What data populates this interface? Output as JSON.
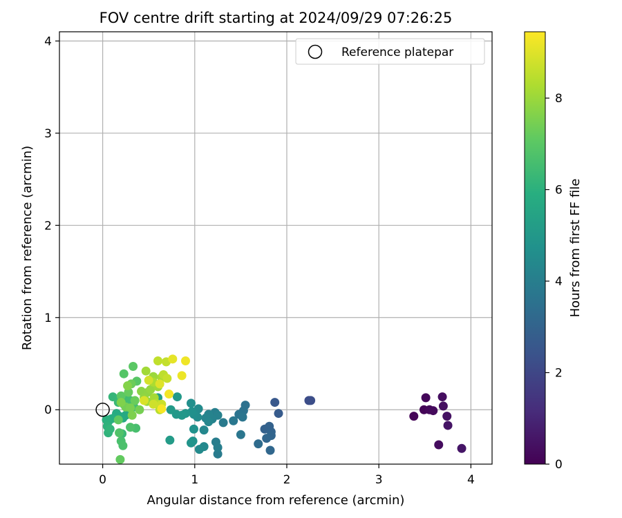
{
  "chart_data": {
    "type": "scatter",
    "title": "FOV centre drift starting at 2024/09/29 07:26:25",
    "xlabel": "Angular distance from reference (arcmin)",
    "ylabel": "Rotation from reference (arcmin)",
    "xlim": [
      -0.47,
      4.23
    ],
    "ylim": [
      -0.59,
      4.1
    ],
    "xticks": [
      0,
      1,
      2,
      3,
      4
    ],
    "yticks": [
      0,
      1,
      2,
      3,
      4
    ],
    "grid": true,
    "legend": {
      "location": "upper right",
      "entries": [
        "Reference platepar"
      ]
    },
    "reference_point": {
      "x": 0.0,
      "y": 0.0
    },
    "colorbar": {
      "label": "Hours from first FF file",
      "colormap": "viridis",
      "range": [
        0,
        9.45
      ],
      "ticks": [
        0,
        2,
        4,
        6,
        8
      ]
    },
    "series": [
      {
        "points": [
          {
            "x": 3.38,
            "y": -0.07,
            "c": 0.1
          },
          {
            "x": 3.49,
            "y": 0.0,
            "c": 0.1
          },
          {
            "x": 3.51,
            "y": 0.13,
            "c": 0.15
          },
          {
            "x": 3.55,
            "y": 0.0,
            "c": 0.2
          },
          {
            "x": 3.59,
            "y": -0.01,
            "c": 0.25
          },
          {
            "x": 3.65,
            "y": -0.38,
            "c": 0.3
          },
          {
            "x": 3.69,
            "y": 0.14,
            "c": 0.35
          },
          {
            "x": 3.7,
            "y": 0.04,
            "c": 0.4
          },
          {
            "x": 3.74,
            "y": -0.07,
            "c": 0.45
          },
          {
            "x": 3.75,
            "y": -0.17,
            "c": 0.5
          },
          {
            "x": 3.9,
            "y": -0.42,
            "c": 0.55
          },
          {
            "x": 2.24,
            "y": 0.1,
            "c": 2.2
          },
          {
            "x": 2.26,
            "y": 0.1,
            "c": 2.25
          },
          {
            "x": 1.87,
            "y": 0.08,
            "c": 2.6
          },
          {
            "x": 1.91,
            "y": -0.04,
            "c": 2.7
          },
          {
            "x": 1.76,
            "y": -0.21,
            "c": 2.9
          },
          {
            "x": 1.81,
            "y": -0.18,
            "c": 2.95
          },
          {
            "x": 1.83,
            "y": -0.24,
            "c": 3.0
          },
          {
            "x": 1.83,
            "y": -0.28,
            "c": 3.05
          },
          {
            "x": 1.78,
            "y": -0.31,
            "c": 3.1
          },
          {
            "x": 1.82,
            "y": -0.44,
            "c": 3.15
          },
          {
            "x": 1.69,
            "y": -0.37,
            "c": 3.3
          },
          {
            "x": 1.55,
            "y": 0.05,
            "c": 3.5
          },
          {
            "x": 1.53,
            "y": -0.01,
            "c": 3.55
          },
          {
            "x": 1.48,
            "y": -0.05,
            "c": 3.6
          },
          {
            "x": 1.52,
            "y": -0.08,
            "c": 3.65
          },
          {
            "x": 1.5,
            "y": -0.27,
            "c": 3.7
          },
          {
            "x": 1.42,
            "y": -0.12,
            "c": 3.75
          },
          {
            "x": 1.31,
            "y": -0.14,
            "c": 3.85
          },
          {
            "x": 1.25,
            "y": -0.48,
            "c": 3.9
          },
          {
            "x": 1.23,
            "y": -0.35,
            "c": 3.95
          },
          {
            "x": 1.25,
            "y": -0.41,
            "c": 4.0
          },
          {
            "x": 1.22,
            "y": -0.03,
            "c": 4.05
          },
          {
            "x": 1.25,
            "y": -0.06,
            "c": 4.1
          },
          {
            "x": 1.19,
            "y": -0.1,
            "c": 4.15
          },
          {
            "x": 1.15,
            "y": -0.05,
            "c": 4.2
          },
          {
            "x": 1.12,
            "y": -0.09,
            "c": 4.25
          },
          {
            "x": 1.15,
            "y": -0.13,
            "c": 4.3
          },
          {
            "x": 1.1,
            "y": -0.22,
            "c": 4.35
          },
          {
            "x": 1.1,
            "y": -0.4,
            "c": 4.4
          },
          {
            "x": 1.05,
            "y": -0.43,
            "c": 4.45
          },
          {
            "x": 1.04,
            "y": 0.01,
            "c": 4.5
          },
          {
            "x": 1.03,
            "y": -0.08,
            "c": 4.55
          },
          {
            "x": 0.99,
            "y": -0.05,
            "c": 4.6
          },
          {
            "x": 0.96,
            "y": 0.07,
            "c": 4.65
          },
          {
            "x": 0.97,
            "y": -0.02,
            "c": 4.7
          },
          {
            "x": 0.99,
            "y": -0.21,
            "c": 4.75
          },
          {
            "x": 0.98,
            "y": -0.34,
            "c": 4.8
          },
          {
            "x": 0.96,
            "y": -0.36,
            "c": 4.85
          },
          {
            "x": 0.9,
            "y": -0.04,
            "c": 4.9
          },
          {
            "x": 0.86,
            "y": -0.06,
            "c": 4.95
          },
          {
            "x": 0.8,
            "y": -0.05,
            "c": 5.0
          },
          {
            "x": 0.81,
            "y": 0.14,
            "c": 5.05
          },
          {
            "x": 0.74,
            "y": 0.0,
            "c": 5.1
          },
          {
            "x": 0.73,
            "y": -0.33,
            "c": 5.15
          },
          {
            "x": 0.6,
            "y": 0.13,
            "c": 5.25
          },
          {
            "x": 0.28,
            "y": -0.03,
            "c": 5.6
          },
          {
            "x": 0.25,
            "y": -0.06,
            "c": 5.65
          },
          {
            "x": 0.22,
            "y": -0.09,
            "c": 5.7
          },
          {
            "x": 0.18,
            "y": -0.07,
            "c": 5.75
          },
          {
            "x": 0.15,
            "y": -0.04,
            "c": 5.8
          },
          {
            "x": 0.12,
            "y": -0.09,
            "c": 5.85
          },
          {
            "x": 0.09,
            "y": -0.1,
            "c": 5.9
          },
          {
            "x": 0.06,
            "y": -0.13,
            "c": 5.95
          },
          {
            "x": 0.04,
            "y": -0.11,
            "c": 6.0
          },
          {
            "x": 0.05,
            "y": -0.18,
            "c": 6.05
          },
          {
            "x": 0.06,
            "y": -0.25,
            "c": 6.1
          },
          {
            "x": 0.08,
            "y": -0.21,
            "c": 6.15
          },
          {
            "x": 0.11,
            "y": 0.14,
            "c": 6.2
          },
          {
            "x": 0.17,
            "y": 0.08,
            "c": 6.3
          },
          {
            "x": 0.21,
            "y": -0.26,
            "c": 6.35
          },
          {
            "x": 0.23,
            "y": 0.06,
            "c": 6.4
          },
          {
            "x": 0.26,
            "y": 0.13,
            "c": 6.45
          },
          {
            "x": 0.3,
            "y": 0.1,
            "c": 6.5
          },
          {
            "x": 0.34,
            "y": 0.03,
            "c": 6.55
          },
          {
            "x": 0.36,
            "y": -0.2,
            "c": 6.6
          },
          {
            "x": 0.2,
            "y": -0.34,
            "c": 6.65
          },
          {
            "x": 0.22,
            "y": -0.39,
            "c": 6.7
          },
          {
            "x": 0.3,
            "y": -0.19,
            "c": 6.75
          },
          {
            "x": 0.18,
            "y": -0.25,
            "c": 6.8
          },
          {
            "x": 0.23,
            "y": 0.39,
            "c": 6.9
          },
          {
            "x": 0.37,
            "y": 0.31,
            "c": 6.95
          },
          {
            "x": 0.33,
            "y": 0.47,
            "c": 7.0
          },
          {
            "x": 0.2,
            "y": 0.15,
            "c": 7.05
          },
          {
            "x": 0.17,
            "y": -0.11,
            "c": 7.1
          },
          {
            "x": 0.19,
            "y": -0.54,
            "c": 7.15
          },
          {
            "x": 0.28,
            "y": 0.19,
            "c": 7.2
          },
          {
            "x": 0.35,
            "y": 0.1,
            "c": 7.25
          },
          {
            "x": 0.31,
            "y": 0.28,
            "c": 7.3
          },
          {
            "x": 0.25,
            "y": 0.03,
            "c": 7.4
          },
          {
            "x": 0.4,
            "y": 0.0,
            "c": 7.45
          },
          {
            "x": 0.3,
            "y": 0.02,
            "c": 7.5
          },
          {
            "x": 0.32,
            "y": -0.06,
            "c": 7.55
          },
          {
            "x": 0.2,
            "y": 0.08,
            "c": 7.6
          },
          {
            "x": 0.27,
            "y": 0.26,
            "c": 7.65
          },
          {
            "x": 0.42,
            "y": 0.2,
            "c": 7.75
          },
          {
            "x": 0.49,
            "y": 0.19,
            "c": 7.8
          },
          {
            "x": 0.45,
            "y": 0.13,
            "c": 7.85
          },
          {
            "x": 0.52,
            "y": 0.22,
            "c": 7.9
          },
          {
            "x": 0.48,
            "y": 0.09,
            "c": 7.95
          },
          {
            "x": 0.55,
            "y": 0.36,
            "c": 8.0
          },
          {
            "x": 0.6,
            "y": 0.25,
            "c": 8.05
          },
          {
            "x": 0.47,
            "y": 0.42,
            "c": 8.1
          },
          {
            "x": 0.56,
            "y": 0.13,
            "c": 8.15
          },
          {
            "x": 0.64,
            "y": 0.35,
            "c": 8.2
          },
          {
            "x": 0.55,
            "y": 0.3,
            "c": 8.25
          },
          {
            "x": 0.58,
            "y": 0.07,
            "c": 8.35
          },
          {
            "x": 0.62,
            "y": 0.0,
            "c": 8.4
          },
          {
            "x": 0.66,
            "y": 0.38,
            "c": 8.5
          },
          {
            "x": 0.6,
            "y": 0.53,
            "c": 8.55
          },
          {
            "x": 0.69,
            "y": 0.52,
            "c": 8.6
          },
          {
            "x": 0.7,
            "y": 0.34,
            "c": 8.65
          },
          {
            "x": 0.64,
            "y": 0.06,
            "c": 8.7
          },
          {
            "x": 0.55,
            "y": 0.06,
            "c": 8.75
          },
          {
            "x": 0.5,
            "y": 0.32,
            "c": 8.85
          },
          {
            "x": 0.45,
            "y": 0.1,
            "c": 8.9
          },
          {
            "x": 0.62,
            "y": 0.28,
            "c": 9.0
          },
          {
            "x": 0.76,
            "y": 0.55,
            "c": 9.1
          },
          {
            "x": 0.86,
            "y": 0.37,
            "c": 9.2
          },
          {
            "x": 0.9,
            "y": 0.53,
            "c": 9.25
          },
          {
            "x": 0.72,
            "y": 0.17,
            "c": 9.3
          },
          {
            "x": 0.64,
            "y": 0.01,
            "c": 9.35
          }
        ]
      }
    ]
  }
}
